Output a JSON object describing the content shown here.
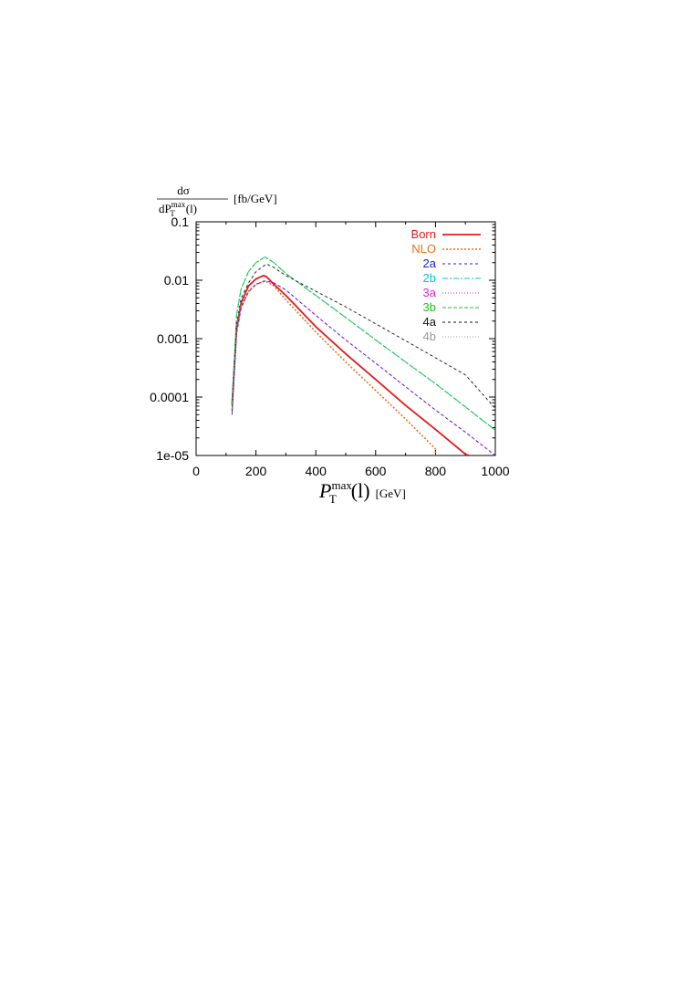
{
  "chart_data": {
    "type": "line",
    "title": "",
    "ylabel": {
      "num": "dσ",
      "den_pre": "dP",
      "den_sup": "max",
      "den_sub": "T",
      "den_post": "(l)",
      "unit": "[fb/GeV]"
    },
    "xlabel": {
      "main": "P",
      "sup": "max",
      "sub": "T",
      "post": "(l)",
      "unit": "[GeV]"
    },
    "xlim": [
      0,
      1000
    ],
    "ylim": [
      1e-05,
      0.1
    ],
    "yscale": "log",
    "x_ticks": [
      {
        "value": 0,
        "label": "0"
      },
      {
        "value": 200,
        "label": "200"
      },
      {
        "value": 400,
        "label": "400"
      },
      {
        "value": 600,
        "label": "600"
      },
      {
        "value": 800,
        "label": "800"
      },
      {
        "value": 1000,
        "label": "1000"
      }
    ],
    "y_ticks": [
      {
        "value": 0.1,
        "label": "0.1"
      },
      {
        "value": 0.01,
        "label": "0.01"
      },
      {
        "value": 0.001,
        "label": "0.001"
      },
      {
        "value": 0.0001,
        "label": "0.0001"
      },
      {
        "value": 1e-05,
        "label": "1e-05"
      }
    ],
    "grid": false,
    "legend_position": "top-right",
    "series": [
      {
        "name": "Born",
        "color": "#e41a1c",
        "dash": "solid",
        "width": 1.8,
        "x": [
          120,
          135,
          150,
          175,
          200,
          225,
          235,
          260,
          300,
          400,
          500,
          600,
          700,
          800,
          900,
          912
        ],
        "y": [
          7.5e-05,
          0.0015,
          0.004,
          0.008,
          0.0105,
          0.012,
          0.0115,
          0.0085,
          0.0055,
          0.0016,
          0.00055,
          0.0002,
          7.2e-05,
          2.8e-05,
          1.05e-05,
          1e-05
        ]
      },
      {
        "name": "NLO",
        "color": "#e8701a",
        "dash": "2,2",
        "width": 1.6,
        "x": [
          120,
          135,
          150,
          175,
          200,
          230,
          260,
          300,
          400,
          500,
          600,
          700,
          800,
          800
        ],
        "y": [
          6e-05,
          0.0013,
          0.0035,
          0.0065,
          0.0085,
          0.0098,
          0.008,
          0.0046,
          0.0013,
          0.0004,
          0.00013,
          4.2e-05,
          1.3e-05,
          1e-05
        ]
      },
      {
        "name": "2a",
        "color": "#2020d0",
        "dash": "3,3",
        "width": 1,
        "x": [
          120,
          135,
          150,
          175,
          200,
          230,
          260,
          300,
          400,
          500,
          600,
          700,
          800,
          900,
          1000
        ],
        "y": [
          5e-05,
          0.0012,
          0.0033,
          0.0063,
          0.0085,
          0.0097,
          0.009,
          0.0068,
          0.0025,
          0.00095,
          0.00038,
          0.00015,
          6e-05,
          2.5e-05,
          1e-05
        ]
      },
      {
        "name": "2b",
        "color": "#00c8d8",
        "dash": "6,2,2,2",
        "width": 1,
        "x": [
          120,
          135,
          150,
          175,
          200,
          230,
          260,
          300,
          400,
          500,
          600,
          700,
          800,
          900,
          1000
        ],
        "y": [
          7e-05,
          0.0025,
          0.007,
          0.014,
          0.02,
          0.025,
          0.02,
          0.013,
          0.0055,
          0.0023,
          0.00095,
          0.0004,
          0.00017,
          6.8e-05,
          2.7e-05
        ]
      },
      {
        "name": "3a",
        "color": "#e020e0",
        "dash": "1,2",
        "width": 1,
        "x": [
          120,
          135,
          150,
          175,
          200,
          230,
          260,
          300,
          400,
          500,
          600,
          700,
          800,
          900,
          1000
        ],
        "y": [
          5e-05,
          0.0012,
          0.0033,
          0.0063,
          0.0085,
          0.0097,
          0.009,
          0.0068,
          0.0025,
          0.00095,
          0.00038,
          0.00015,
          6e-05,
          2.5e-05,
          1e-05
        ]
      },
      {
        "name": "3b",
        "color": "#20c020",
        "dash": "4,2",
        "width": 1,
        "x": [
          120,
          135,
          150,
          175,
          200,
          230,
          260,
          300,
          400,
          500,
          600,
          700,
          800,
          900,
          1000
        ],
        "y": [
          7e-05,
          0.0025,
          0.007,
          0.014,
          0.02,
          0.025,
          0.02,
          0.013,
          0.0055,
          0.0023,
          0.00095,
          0.0004,
          0.00017,
          6.8e-05,
          2.7e-05
        ]
      },
      {
        "name": "4a",
        "color": "#111111",
        "dash": "3,3",
        "width": 1,
        "x": [
          120,
          135,
          150,
          175,
          200,
          235,
          260,
          300,
          400,
          500,
          600,
          700,
          800,
          900,
          1000
        ],
        "y": [
          5.5e-05,
          0.0017,
          0.0048,
          0.009,
          0.014,
          0.019,
          0.0165,
          0.012,
          0.0065,
          0.0035,
          0.0018,
          0.00092,
          0.00047,
          0.00024,
          6.4e-05
        ]
      },
      {
        "name": "4b",
        "color": "#9a9a9a",
        "dash": "1,2",
        "width": 1,
        "x": [
          120,
          135,
          150,
          175,
          200,
          235,
          260,
          300,
          400,
          500,
          600,
          700,
          800,
          900,
          1000
        ],
        "y": [
          5.5e-05,
          0.0017,
          0.0048,
          0.009,
          0.014,
          0.019,
          0.0165,
          0.012,
          0.0065,
          0.0035,
          0.0018,
          0.00092,
          0.00047,
          0.00024,
          6.4e-05
        ]
      }
    ]
  }
}
